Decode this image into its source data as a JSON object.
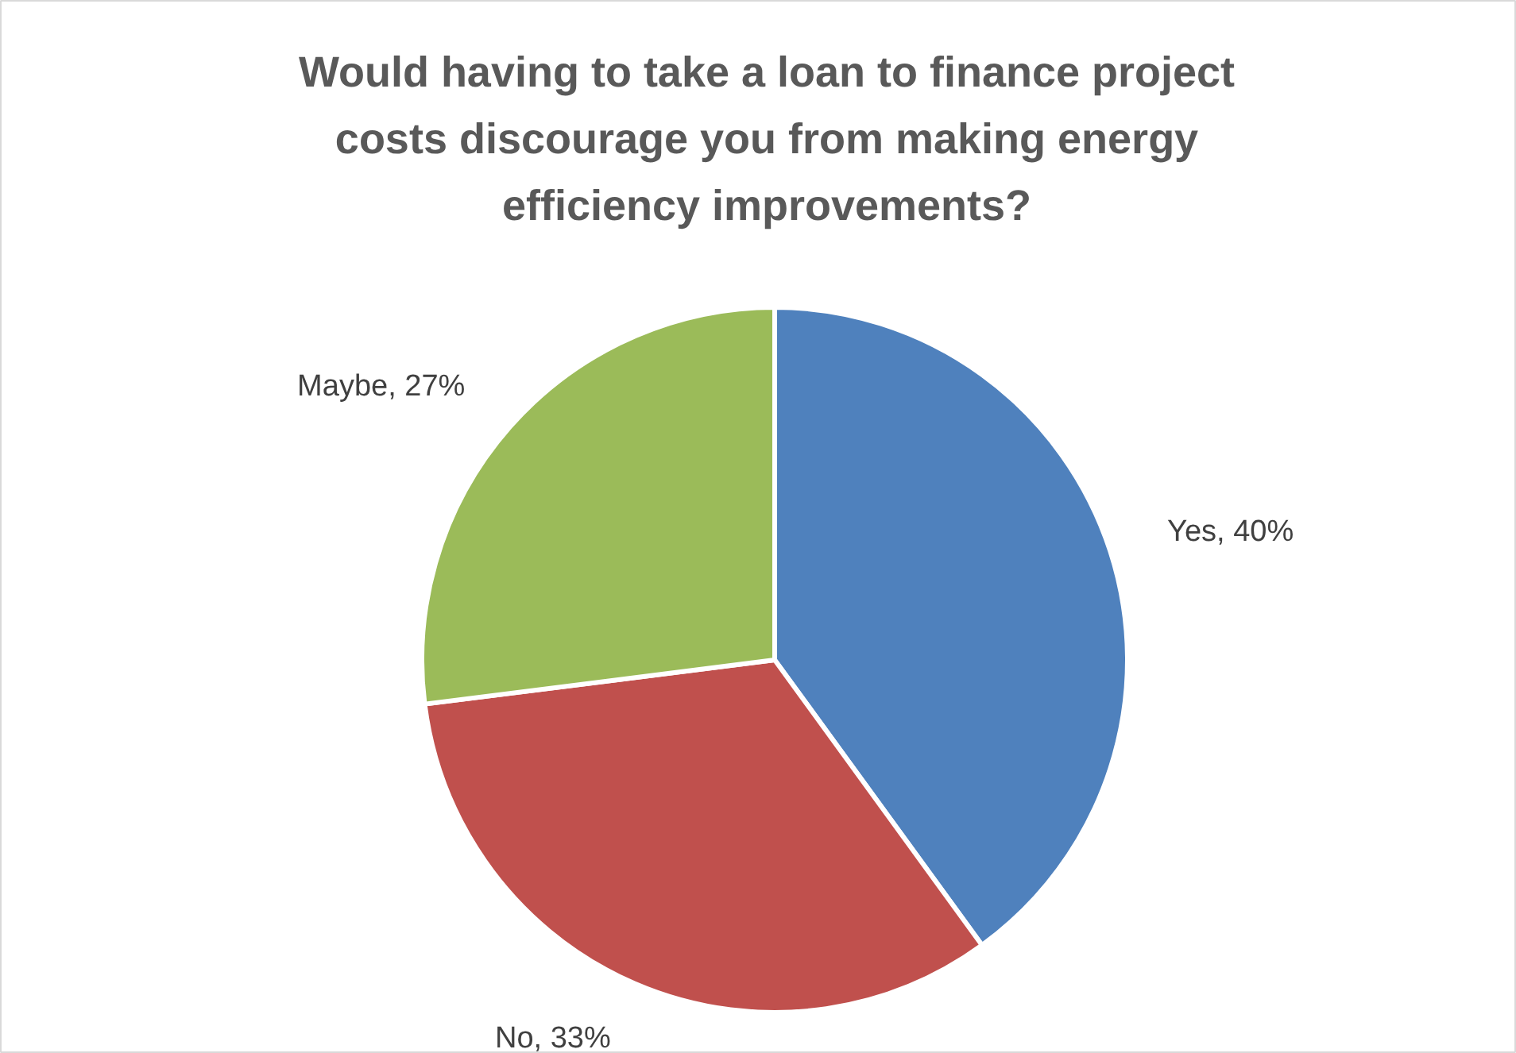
{
  "chart_data": {
    "type": "pie",
    "title": "Would having to take a loan to finance project costs discourage you from making energy efficiency improvements?",
    "categories": [
      "Yes",
      "No",
      "Maybe"
    ],
    "values": [
      40,
      33,
      27
    ],
    "value_labels": [
      "40%",
      "33%",
      "27%"
    ],
    "colors": [
      "#4f81bd",
      "#c0504d",
      "#9bbb59"
    ],
    "legend": false
  }
}
